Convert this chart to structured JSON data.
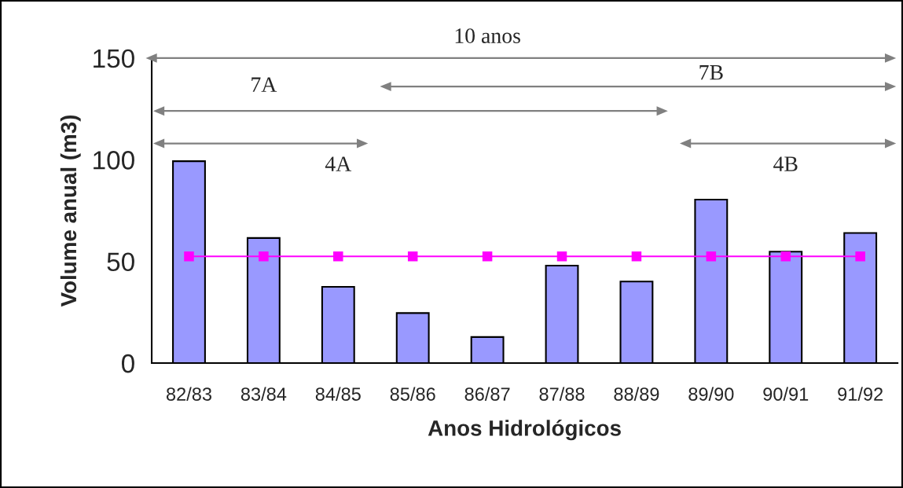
{
  "chart_data": {
    "type": "bar",
    "xlabel": "Anos Hidrológicos",
    "ylabel": "Volume anual (m3)",
    "categories": [
      "82/83",
      "83/84",
      "84/85",
      "85/86",
      "86/87",
      "87/88",
      "88/89",
      "89/90",
      "90/91",
      "91/92"
    ],
    "series": [
      {
        "color": "#9999ff",
        "values": [
          99.3,
          61.5,
          37.5,
          24.6,
          12.8,
          47.9,
          40.1,
          80.4,
          54.8,
          64
        ]
      },
      {
        "type": "line",
        "color": "#ff00ff",
        "marker": "square",
        "values": [
          52.5,
          52.5,
          52.5,
          52.5,
          52.5,
          52.5,
          52.5,
          52.5,
          52.5,
          52.5
        ]
      }
    ],
    "ylim": [
      0,
      150
    ],
    "yticks": [
      0,
      50,
      100,
      150
    ],
    "grid": false,
    "legend": false,
    "annotations": [
      "10 anos",
      "7A",
      "7B",
      "4A",
      "4B"
    ]
  }
}
